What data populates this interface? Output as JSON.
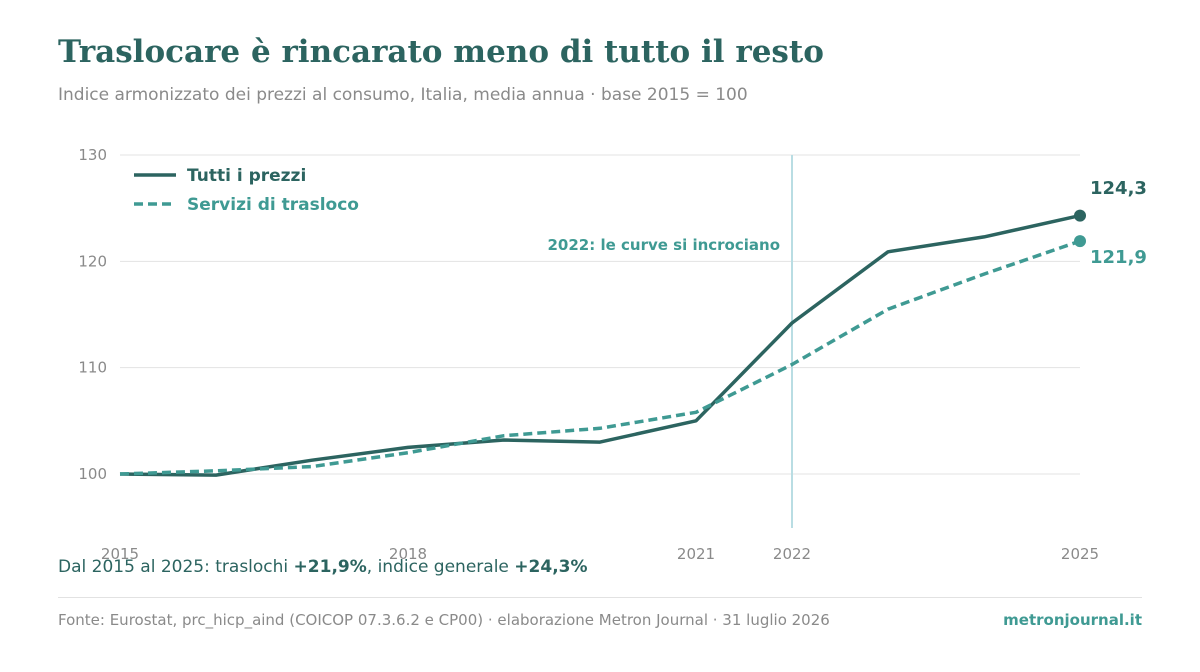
{
  "header": {
    "title": "Traslocare è rincarato meno di tutto il resto",
    "subtitle": "Indice armonizzato dei prezzi al consumo, Italia, media annua · base 2015 = 100"
  },
  "colors": {
    "all_prices": "#2c6460",
    "moving": "#3f9a93",
    "grid": "#e3e3e3",
    "tick": "#8a8a8a",
    "crossover_line": "#b9dde3"
  },
  "chart_data": {
    "type": "line",
    "title": "Traslocare è rincarato meno di tutto il resto",
    "subtitle": "Indice armonizzato dei prezzi al consumo, Italia, media annua · base 2015 = 100",
    "x": [
      2015,
      2016,
      2017,
      2018,
      2019,
      2020,
      2021,
      2022,
      2023,
      2024,
      2025
    ],
    "x_tick_values": [
      2015,
      2018,
      2021,
      2022,
      2025
    ],
    "x_tick_labels": [
      "2015",
      "2018",
      "2021",
      "2022",
      "2025"
    ],
    "xlim": [
      2015,
      2025
    ],
    "y_ticks": [
      100,
      110,
      120,
      130
    ],
    "ylim": [
      95,
      130
    ],
    "grid": true,
    "legend_position": "top-left",
    "series": [
      {
        "name": "Tutti i prezzi",
        "style": "solid",
        "color": "#2c6460",
        "values": [
          100.0,
          99.9,
          101.3,
          102.5,
          103.2,
          103.0,
          105.0,
          114.2,
          120.9,
          122.3,
          124.3
        ],
        "end_label": "124,3"
      },
      {
        "name": "Servizi di trasloco",
        "style": "dashed",
        "color": "#3f9a93",
        "values": [
          100.0,
          100.3,
          100.7,
          102.0,
          103.6,
          104.3,
          105.8,
          110.3,
          115.5,
          118.8,
          121.9
        ],
        "end_label": "121,9"
      }
    ],
    "annotations": [
      {
        "x": 2022,
        "label": "2022: le curve si incrociano"
      }
    ]
  },
  "summary": {
    "prefix": "Dal 2015 al 2025: traslochi ",
    "moving_change": "+21,9%",
    "middle": ", indice generale ",
    "all_change": "+24,3%"
  },
  "footer": {
    "source": "Fonte: Eurostat, prc_hicp_aind (COICOP 07.3.6.2 e CP00) · elaborazione Metron Journal · 31 luglio 2026",
    "brand": "metronjournal.it"
  }
}
